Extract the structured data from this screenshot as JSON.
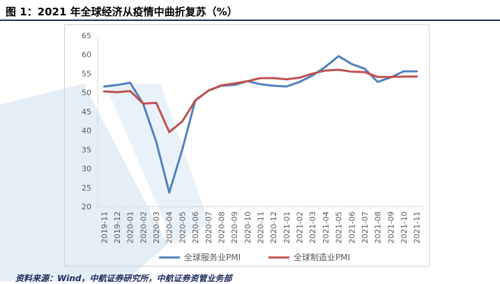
{
  "figure": {
    "title": "图 1：2021 年全球经济从疫情中曲折复苏（%）",
    "source": "资料来源：Wind，中航证券研究所，中航证券资管业务部"
  },
  "colors": {
    "services": "#4f81bd",
    "manufacturing": "#c0504d",
    "watermark": "#d9e8f4",
    "title_rule": "#1f2d5c"
  },
  "chart_data": {
    "type": "line",
    "title": "",
    "xlabel": "",
    "ylabel": "",
    "ylim": [
      20,
      65
    ],
    "yticks": [
      20,
      25,
      30,
      35,
      40,
      45,
      50,
      55,
      60,
      65
    ],
    "grid": false,
    "legend_position": "bottom",
    "categories": [
      "2019-11",
      "2019-12",
      "2020-01",
      "2020-02",
      "2020-03",
      "2020-04",
      "2020-05",
      "2020-06",
      "2020-07",
      "2020-08",
      "2020-09",
      "2020-10",
      "2020-11",
      "2020-12",
      "2021-01",
      "2021-02",
      "2021-03",
      "2021-04",
      "2021-05",
      "2021-06",
      "2021-07",
      "2021-08",
      "2021-09",
      "2021-10",
      "2021-11"
    ],
    "series": [
      {
        "name": "全球服务业PMI",
        "color": "#4f81bd",
        "values": [
          51.6,
          52.0,
          52.6,
          47.0,
          37.0,
          23.7,
          35.0,
          48.0,
          50.5,
          51.8,
          52.0,
          53.0,
          52.2,
          51.8,
          51.6,
          52.8,
          54.5,
          56.8,
          59.6,
          57.5,
          56.3,
          52.8,
          54.0,
          55.6,
          55.6
        ]
      },
      {
        "name": "全球制造业PMI",
        "color": "#c0504d",
        "values": [
          50.3,
          50.1,
          50.4,
          47.1,
          47.3,
          39.6,
          42.4,
          47.9,
          50.5,
          51.9,
          52.4,
          53.0,
          53.8,
          53.8,
          53.5,
          53.9,
          55.0,
          55.8,
          56.0,
          55.5,
          55.4,
          54.1,
          54.1,
          54.2,
          54.2
        ]
      }
    ]
  }
}
